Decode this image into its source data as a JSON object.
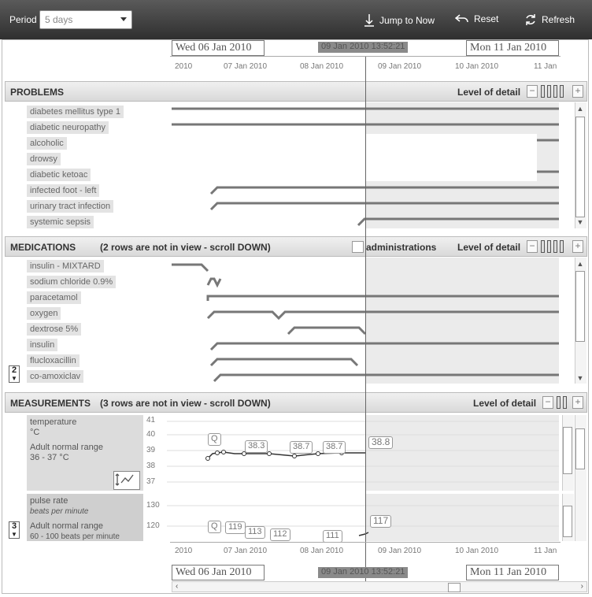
{
  "toolbar": {
    "period_label": "Period",
    "period_value": "5 days",
    "jump_label": "Jump to Now",
    "reset_label": "Reset",
    "refresh_label": "Refresh"
  },
  "timeline": {
    "start_label": "Wed 06 Jan 2010",
    "center_label": "09 Jan 2010 13:52:21",
    "end_label": "Mon 11 Jan 2010",
    "ticks": [
      "2010",
      "07 Jan 2010",
      "08 Jan 2010",
      "09 Jan 2010",
      "10 Jan 2010",
      "11 Jan"
    ]
  },
  "problems": {
    "title": "PROBLEMS",
    "level_label": "Level of detail",
    "rows": [
      "diabetes mellitus type 1",
      "diabetic neuropathy",
      "alcoholic",
      "drowsy",
      "diabetic ketoac",
      "infected foot - left",
      "urinary tract infection",
      "systemic sepsis"
    ]
  },
  "medications": {
    "title": "MEDICATIONS",
    "subtitle": "(2 rows are not in view - scroll DOWN)",
    "administrations_label": "administrations",
    "level_label": "Level of detail",
    "rows": [
      "insulin - MIXTARD",
      "sodium chloride 0.9%",
      "paracetamol",
      "oxygen",
      "dextrose 5%",
      "insulin",
      "flucloxacillin",
      "co-amoxiclav"
    ],
    "hidden_count": "2"
  },
  "measurements": {
    "title": "MEASUREMENTS",
    "subtitle": "(3 rows are not in view - scroll DOWN)",
    "level_label": "Level of detail",
    "hidden_count": "3",
    "temperature": {
      "name": "temperature",
      "unit": "°C",
      "range_label": "Adult normal range",
      "range_value": "36 - 37 °C",
      "axis": [
        "41",
        "40",
        "39",
        "38",
        "37"
      ],
      "values": [
        "38.3",
        "38.7",
        "38.7",
        "38.8"
      ],
      "q_label": "Q"
    },
    "pulse": {
      "name": "pulse rate",
      "unit": "beats per minute",
      "range_label": "Adult normal range",
      "range_value": "60 - 100 beats per minute",
      "axis": [
        "130",
        "120"
      ],
      "values": [
        "119",
        "113",
        "112",
        "111",
        "117"
      ],
      "q_label": "Q"
    }
  },
  "colors": {
    "accent": "#555555",
    "toolbar": "#3a3a3a",
    "shade": "#ebebeb"
  },
  "icons": [
    "download-icon",
    "reset-icon",
    "refresh-icon",
    "chart-toggle-icon"
  ]
}
